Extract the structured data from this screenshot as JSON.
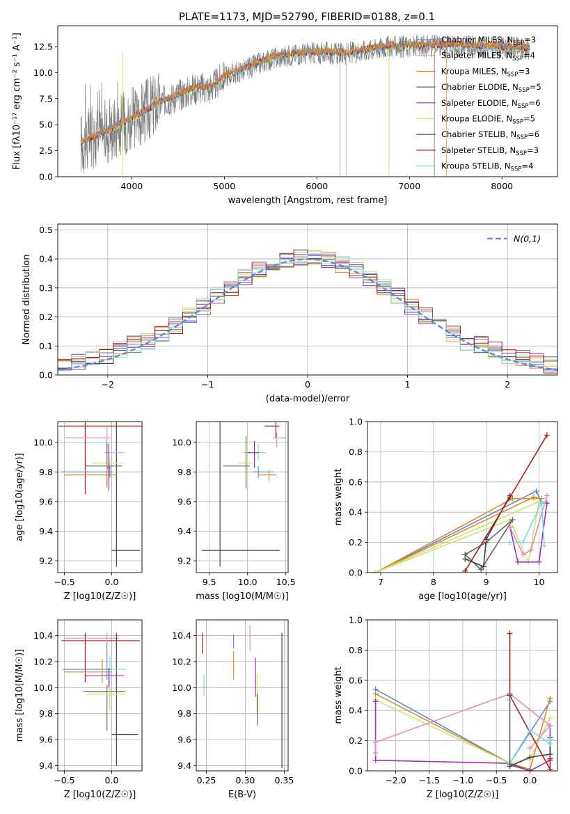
{
  "title": "PLATE=1173, MJD=52790, FIBERID=0188, z=0.1",
  "colors": {
    "Chabrier MILES": "#5b8bd9",
    "Salpeter MILES": "#f4a582",
    "Kroupa MILES": "#e08a2a",
    "Chabrier ELODIE": "#666666",
    "Salpeter ELODIE": "#9b30b0",
    "Kroupa ELODIE": "#c8e66e",
    "Chabrier STELIB": "#444444",
    "Salpeter STELIB": "#b01a1a",
    "Kroupa STELIB": "#7fd6e0",
    "Pink": "#e58ab8",
    "Normal": "#5b8bd9",
    "Grid": "#b0b0b0"
  },
  "chart_data": [
    {
      "id": "spectrum",
      "type": "line",
      "xlabel": "wavelength [Angstrom, rest frame]",
      "ylabel": "Flux [fλ10⁻¹⁷ erg cm⁻² s⁻¹ A⁻¹]",
      "xlim": [
        3200,
        8600
      ],
      "ylim": [
        0,
        14.5
      ],
      "xticks": [
        4000,
        5000,
        6000,
        7000,
        8000
      ],
      "yticks": [
        0.0,
        2.5,
        5.0,
        7.5,
        10.0,
        12.5
      ],
      "grid": false,
      "legend_position": "right",
      "legend": [
        {
          "label": "Chabrier MILES, N",
          "sub": "SSP",
          "suffix": "=3",
          "color": "Chabrier MILES"
        },
        {
          "label": "Salpeter MILES, N",
          "sub": "SSP",
          "suffix": "=4",
          "color": "Salpeter MILES"
        },
        {
          "label": "Kroupa MILES, N",
          "sub": "SSP",
          "suffix": "=3",
          "color": "Kroupa MILES"
        },
        {
          "label": "Chabrier ELODIE, N",
          "sub": "SSP",
          "suffix": "=5",
          "color": "Chabrier ELODIE"
        },
        {
          "label": "Salpeter ELODIE, N",
          "sub": "SSP",
          "suffix": "=6",
          "color": "Salpeter ELODIE"
        },
        {
          "label": "Kroupa ELODIE, N",
          "sub": "SSP",
          "suffix": "=5",
          "color": "Kroupa ELODIE"
        },
        {
          "label": "Chabrier STELIB, N",
          "sub": "SSP",
          "suffix": "=6",
          "color": "Chabrier STELIB"
        },
        {
          "label": "Salpeter STELIB, N",
          "sub": "SSP",
          "suffix": "=3",
          "color": "Salpeter STELIB"
        },
        {
          "label": "Kroupa STELIB, N",
          "sub": "SSP",
          "suffix": "=4",
          "color": "Kroupa STELIB"
        }
      ],
      "continuum": {
        "wavelength": [
          3450,
          3700,
          3950,
          4100,
          4300,
          4500,
          4700,
          4860,
          5000,
          5200,
          5500,
          5800,
          6100,
          6300,
          6563,
          6800,
          7000,
          7300,
          7600,
          8000,
          8300
        ],
        "flux": [
          3.2,
          4.2,
          5.3,
          6.0,
          7.1,
          7.8,
          8.5,
          8.5,
          9.6,
          10.2,
          11.3,
          11.8,
          11.9,
          11.8,
          12.2,
          12.5,
          12.5,
          12.6,
          12.5,
          12.4,
          12.3
        ]
      }
    },
    {
      "id": "residuals",
      "type": "histogram",
      "xlabel": "(data-model)/error",
      "ylabel": "Normed distribution",
      "xlim": [
        -2.5,
        2.5
      ],
      "ylim": [
        0,
        0.52
      ],
      "xticks": [
        -2,
        -1,
        0,
        1,
        2
      ],
      "yticks": [
        0.0,
        0.1,
        0.2,
        0.3,
        0.4,
        0.5
      ],
      "grid": true,
      "legend_position": "top-right",
      "legend": [
        {
          "label": "N(0,1)",
          "color": "Normal"
        }
      ],
      "series_colors": [
        "Chabrier MILES",
        "Salpeter MILES",
        "Kroupa MILES",
        "Chabrier ELODIE",
        "Salpeter ELODIE",
        "Kroupa ELODIE",
        "Chabrier STELIB",
        "Salpeter STELIB",
        "Kroupa STELIB"
      ]
    },
    {
      "id": "age_vs_Z",
      "type": "errorbar",
      "xlabel": "Z [log10(Z/Z☉)]",
      "ylabel": "age [log10(age/yr)]",
      "xlim": [
        -0.57,
        0.32
      ],
      "ylim": [
        9.12,
        10.14
      ],
      "xticks": [
        -0.5,
        0.0
      ],
      "yticks": [
        9.2,
        9.4,
        9.6,
        9.8,
        10.0
      ],
      "grid": true,
      "points": [
        {
          "x": -0.28,
          "y": 10.11,
          "xerr": [
            0.28,
            0.68
          ],
          "yerr": [
            0.46,
            0.04
          ],
          "color": "Salpeter STELIB"
        },
        {
          "x": -0.05,
          "y": 10.03,
          "xerr": [
            0.45,
            0.04
          ],
          "yerr": [
            0.13,
            0.07
          ],
          "color": "Pink"
        },
        {
          "x": 0.05,
          "y": 9.27,
          "xerr": [
            0.05,
            0.25
          ],
          "yerr": [
            0.11,
            0.87
          ],
          "color": "Chabrier STELIB"
        },
        {
          "x": -0.03,
          "y": 9.93,
          "xerr": [
            0.05,
            0.17
          ],
          "yerr": [
            0.17,
            0.07
          ],
          "color": "Kroupa STELIB"
        },
        {
          "x": -0.02,
          "y": 9.86,
          "xerr": [
            0.18,
            0.15
          ],
          "yerr": [
            0.1,
            0.05
          ],
          "color": "Kroupa ELODIE"
        },
        {
          "x": -0.05,
          "y": 9.84,
          "xerr": [
            0.23,
            0.16
          ],
          "yerr": [
            0.13,
            0.16
          ],
          "color": "Chabrier ELODIE"
        },
        {
          "x": -0.02,
          "y": 9.8,
          "xerr": [
            0.51,
            0.03
          ],
          "yerr": [
            0.04,
            0.04
          ],
          "color": "Chabrier MILES"
        },
        {
          "x": -0.05,
          "y": 9.78,
          "xerr": [
            0.45,
            0.1
          ],
          "yerr": [
            0.09,
            0.07
          ],
          "color": "Kroupa MILES"
        },
        {
          "x": -0.03,
          "y": 9.83,
          "xerr": [
            0.02,
            0.02
          ],
          "yerr": [
            0.16,
            0.16
          ],
          "color": "Salpeter ELODIE"
        }
      ]
    },
    {
      "id": "age_vs_mass",
      "type": "errorbar",
      "xlabel": "mass [log10(M/M☉)]",
      "ylabel": "",
      "xlim": [
        9.33,
        10.53
      ],
      "ylim": [
        9.12,
        10.14
      ],
      "xticks": [
        9.5,
        10.0,
        10.5
      ],
      "yticks": [
        9.2,
        9.4,
        9.6,
        9.8,
        10.0
      ],
      "grid": true,
      "points": [
        {
          "x": 10.37,
          "y": 10.11,
          "xerr": [
            0.15,
            0.05
          ],
          "yerr": [
            0.08,
            0.03
          ],
          "color": "Salpeter STELIB"
        },
        {
          "x": 10.38,
          "y": 10.03,
          "xerr": [
            0.05,
            0.12
          ],
          "yerr": [
            0.06,
            0.04
          ],
          "color": "Pink"
        },
        {
          "x": 9.64,
          "y": 9.27,
          "xerr": [
            0.24,
            0.78
          ],
          "yerr": [
            0.11,
            0.87
          ],
          "color": "Chabrier STELIB"
        },
        {
          "x": 10.14,
          "y": 9.93,
          "xerr": [
            0.2,
            0.1
          ],
          "yerr": [
            0.05,
            0.06
          ],
          "color": "Kroupa STELIB"
        },
        {
          "x": 10.0,
          "y": 9.86,
          "xerr": [
            0.13,
            0.08
          ],
          "yerr": [
            0.12,
            0.17
          ],
          "color": "Kroupa ELODIE"
        },
        {
          "x": 9.98,
          "y": 9.84,
          "xerr": [
            0.3,
            0.05
          ],
          "yerr": [
            0.15,
            0.2
          ],
          "color": "Chabrier ELODIE"
        },
        {
          "x": 10.14,
          "y": 9.8,
          "xerr": [
            0.08,
            0.2
          ],
          "yerr": [
            0.04,
            0.04
          ],
          "color": "Chabrier MILES"
        },
        {
          "x": 10.28,
          "y": 9.78,
          "xerr": [
            0.13,
            0.1
          ],
          "yerr": [
            0.04,
            0.03
          ],
          "color": "Kroupa MILES"
        },
        {
          "x": 10.09,
          "y": 9.93,
          "xerr": [
            0.09,
            0.06
          ],
          "yerr": [
            0.1,
            0.08
          ],
          "color": "Salpeter ELODIE"
        }
      ]
    },
    {
      "id": "weight_vs_age",
      "type": "line",
      "xlabel": "age [log10(age/yr)]",
      "ylabel": "mass weight",
      "xlim": [
        6.75,
        10.35
      ],
      "ylim": [
        0,
        1.0
      ],
      "xticks": [
        7,
        8,
        9,
        10
      ],
      "yticks": [
        0.0,
        0.2,
        0.4,
        0.6,
        0.8,
        1.0
      ],
      "grid": true,
      "series": [
        {
          "color": "Chabrier MILES",
          "x": [
            6.9,
            9.95,
            10.05
          ],
          "y": [
            0.0,
            0.54,
            0.46
          ]
        },
        {
          "color": "Kroupa MILES",
          "x": [
            6.9,
            9.9,
            10.05,
            9.5,
            6.9
          ],
          "y": [
            0.0,
            0.5,
            0.49,
            0.49,
            0.0
          ]
        },
        {
          "color": "Kroupa ELODIE",
          "x": [
            6.9,
            9.45,
            9.8,
            10.0,
            6.9
          ],
          "y": [
            0.0,
            0.35,
            0.07,
            0.47,
            0.0
          ]
        },
        {
          "color": "Chabrier ELODIE",
          "x": [
            8.6,
            8.9,
            9.5,
            9.0,
            8.6
          ],
          "y": [
            0.12,
            0.02,
            0.35,
            0.2,
            0.12
          ]
        },
        {
          "color": "Chabrier STELIB",
          "x": [
            8.6,
            8.95,
            9.0,
            9.45
          ],
          "y": [
            0.09,
            0.04,
            0.22,
            0.51
          ]
        },
        {
          "color": "Salpeter STELIB",
          "x": [
            8.6,
            9.45,
            10.15
          ],
          "y": [
            0.01,
            0.5,
            0.91
          ]
        },
        {
          "color": "Salpeter ELODIE",
          "x": [
            9.45,
            9.6,
            10.0,
            10.15
          ],
          "y": [
            0.3,
            0.07,
            0.07,
            0.46
          ]
        },
        {
          "color": "Pink",
          "x": [
            9.45,
            9.7,
            9.85,
            10.15
          ],
          "y": [
            0.3,
            0.12,
            0.15,
            0.51
          ]
        },
        {
          "color": "Kroupa STELIB",
          "x": [
            9.45,
            9.7,
            10.05,
            10.1
          ],
          "y": [
            0.2,
            0.2,
            0.47,
            0.18
          ]
        }
      ]
    },
    {
      "id": "mass_vs_Z",
      "type": "errorbar",
      "xlabel": "Z [log10(Z/Z☉)]",
      "ylabel": "mass [log10(M/M☉)]",
      "xlim": [
        -0.57,
        0.32
      ],
      "ylim": [
        9.36,
        10.52
      ],
      "xticks": [
        -0.5,
        0.0
      ],
      "yticks": [
        9.4,
        9.6,
        9.8,
        10.0,
        10.2,
        10.4
      ],
      "grid": true,
      "points": [
        {
          "x": -0.28,
          "y": 10.36,
          "xerr": [
            0.25,
            0.58
          ],
          "yerr": [
            0.32,
            0.06
          ],
          "color": "Salpeter STELIB"
        },
        {
          "x": -0.05,
          "y": 10.38,
          "xerr": [
            0.46,
            0.13
          ],
          "yerr": [
            0.05,
            0.04
          ],
          "color": "Pink"
        },
        {
          "x": 0.05,
          "y": 9.64,
          "xerr": [
            0.05,
            0.23
          ],
          "yerr": [
            0.24,
            0.78
          ],
          "color": "Chabrier STELIB"
        },
        {
          "x": -0.02,
          "y": 10.14,
          "xerr": [
            0.02,
            0.18
          ],
          "yerr": [
            0.2,
            0.1
          ],
          "color": "Kroupa STELIB"
        },
        {
          "x": -0.05,
          "y": 10.14,
          "xerr": [
            0.47,
            0.05
          ],
          "yerr": [
            0.08,
            0.2
          ],
          "color": "Chabrier MILES"
        },
        {
          "x": -0.1,
          "y": 10.12,
          "xerr": [
            0.4,
            0.1
          ],
          "yerr": [
            0.08,
            0.1
          ],
          "color": "Kroupa MILES"
        },
        {
          "x": -0.03,
          "y": 10.09,
          "xerr": [
            0.25,
            0.16
          ],
          "yerr": [
            0.09,
            0.06
          ],
          "color": "Salpeter ELODIE"
        },
        {
          "x": -0.05,
          "y": 9.97,
          "xerr": [
            0.25,
            0.19
          ],
          "yerr": [
            0.3,
            0.05
          ],
          "color": "Chabrier ELODIE"
        },
        {
          "x": -0.02,
          "y": 9.95,
          "xerr": [
            0.25,
            0.17
          ],
          "yerr": [
            0.13,
            0.08
          ],
          "color": "Kroupa ELODIE"
        }
      ]
    },
    {
      "id": "mass_vs_ebv",
      "type": "errorbar",
      "xlabel": "E(B-V)",
      "ylabel": "",
      "xlim": [
        0.237,
        0.355
      ],
      "ylim": [
        9.36,
        10.52
      ],
      "xticks": [
        0.25,
        0.3,
        0.35
      ],
      "yticks": [
        9.4,
        9.6,
        9.8,
        10.0,
        10.2,
        10.4
      ],
      "grid": true,
      "points": [
        {
          "x": 0.245,
          "y": 10.36,
          "xerr": [
            0,
            0
          ],
          "yerr": [
            0.1,
            0.06
          ],
          "color": "Salpeter STELIB"
        },
        {
          "x": 0.247,
          "y": 10.0,
          "xerr": [
            0,
            0
          ],
          "yerr": [
            0.06,
            0.1
          ],
          "color": "Kroupa STELIB"
        },
        {
          "x": 0.285,
          "y": 10.12,
          "xerr": [
            0,
            0
          ],
          "yerr": [
            0.06,
            0.16
          ],
          "color": "Kroupa MILES"
        },
        {
          "x": 0.285,
          "y": 10.38,
          "xerr": [
            0,
            0
          ],
          "yerr": [
            0.08,
            0.03
          ],
          "color": "Chabrier MILES"
        },
        {
          "x": 0.306,
          "y": 10.38,
          "xerr": [
            0,
            0
          ],
          "yerr": [
            0.1,
            0.1
          ],
          "color": "Pink"
        },
        {
          "x": 0.313,
          "y": 10.09,
          "xerr": [
            0,
            0
          ],
          "yerr": [
            0.16,
            0.14
          ],
          "color": "Salpeter ELODIE"
        },
        {
          "x": 0.315,
          "y": 9.95,
          "xerr": [
            0,
            0
          ],
          "yerr": [
            0.16,
            0.16
          ],
          "color": "Kroupa ELODIE"
        },
        {
          "x": 0.316,
          "y": 9.95,
          "xerr": [
            0,
            0
          ],
          "yerr": [
            0.24,
            0.0
          ],
          "color": "Chabrier ELODIE"
        },
        {
          "x": 0.347,
          "y": 9.9,
          "xerr": [
            0,
            0
          ],
          "yerr": [
            0.52,
            0.52
          ],
          "color": "Chabrier STELIB"
        }
      ]
    },
    {
      "id": "weight_vs_Z",
      "type": "line",
      "xlabel": "Z [log10(Z/Z☉)]",
      "ylabel": "mass weight",
      "xlim": [
        -2.42,
        0.41
      ],
      "ylim": [
        0,
        1.0
      ],
      "xticks": [
        -2.0,
        -1.5,
        -1.0,
        -0.5,
        0.0
      ],
      "yticks": [
        0.0,
        0.2,
        0.4,
        0.6,
        0.8,
        1.0
      ],
      "grid": true,
      "series": [
        {
          "color": "Chabrier MILES",
          "x": [
            -2.3,
            -0.3,
            0.3
          ],
          "y": [
            0.54,
            0.05,
            0.46
          ]
        },
        {
          "color": "Kroupa MILES",
          "x": [
            -2.3,
            -0.3,
            0.0,
            0.3
          ],
          "y": [
            0.51,
            0.05,
            0.01,
            0.48
          ]
        },
        {
          "color": "Kroupa ELODIE",
          "x": [
            -2.3,
            -0.3,
            0.0,
            0.3
          ],
          "y": [
            0.47,
            0.05,
            0.08,
            0.35
          ]
        },
        {
          "color": "Salpeter ELODIE",
          "x": [
            -2.3,
            -2.3,
            -0.3,
            0.0,
            0.3,
            0.3
          ],
          "y": [
            0.46,
            0.07,
            0.05,
            0.0,
            0.07,
            0.3
          ]
        },
        {
          "color": "Pink",
          "x": [
            -2.3,
            -2.3,
            -0.3,
            0.3,
            0.0
          ],
          "y": [
            0.12,
            0.19,
            0.51,
            0.3,
            0.15
          ]
        },
        {
          "color": "Salpeter STELIB",
          "x": [
            -0.3,
            -0.3,
            0.3,
            0.3
          ],
          "y": [
            0.91,
            0.5,
            0.01,
            0.08
          ]
        },
        {
          "color": "Chabrier STELIB",
          "x": [
            -0.3,
            0.0,
            0.3,
            0.3
          ],
          "y": [
            0.03,
            0.09,
            0.11,
            0.22
          ]
        },
        {
          "color": "Kroupa STELIB",
          "x": [
            -0.3,
            -0.3,
            0.0,
            0.3,
            0.3
          ],
          "y": [
            0.47,
            0.05,
            0.27,
            0.18,
            0.21
          ]
        },
        {
          "color": "Chabrier ELODIE",
          "x": [
            -0.3,
            -0.3,
            0.0
          ],
          "y": [
            0.51,
            0.04,
            0.0
          ]
        }
      ]
    }
  ],
  "histogram_steps": {
    "bins": 36,
    "normal_label": "N(0,1)"
  }
}
